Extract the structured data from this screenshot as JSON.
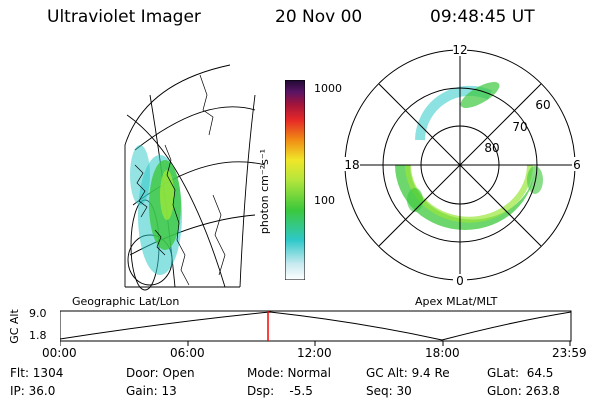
{
  "header": {
    "title": "Ultraviolet Imager",
    "date": "20 Nov 00",
    "time": "09:48:45 UT"
  },
  "geographic_panel": {
    "label": "Geographic Lat/Lon"
  },
  "colorbar": {
    "unit_label": "photon cm⁻²s⁻¹",
    "ticks": [
      "1000",
      "100"
    ],
    "scale": "log"
  },
  "apex_panel": {
    "label": "Apex MLat/MLT",
    "mlt_labels": [
      "12",
      "18",
      "6",
      "0"
    ],
    "lat_labels": [
      "60",
      "70",
      "80"
    ]
  },
  "altitude_plot": {
    "ylabel": "GC Alt",
    "yticks": [
      "9.0",
      "1.8"
    ],
    "xticks": [
      "00:00",
      "06:00",
      "12:00",
      "18:00",
      "23:59"
    ],
    "current_time": "09:48:45",
    "marker_color": "#ff0000"
  },
  "info": {
    "flt": "Flt: 1304",
    "ip": "IP: 36.0",
    "door": "Door: Open",
    "gain": "Gain: 13",
    "mode": "Mode: Normal",
    "dsp": "Dsp:    -5.5",
    "gcalt": "GC Alt: 9.4 Re",
    "seq": "Seq: 30",
    "glat": "GLat:  64.5",
    "glon": "GLon: 263.8"
  },
  "colors": {
    "aurora_green": "#3cc83c",
    "aurora_cyan": "#2ec8c8",
    "aurora_lime": "#9ae63c"
  }
}
